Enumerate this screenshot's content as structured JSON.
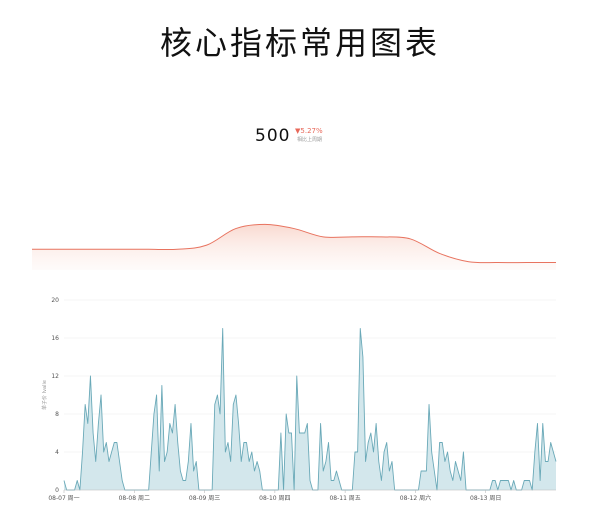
{
  "page": {
    "title": "核心指标常用图表"
  },
  "kpi": {
    "value": "500",
    "change": "5.27%",
    "caption": "相比上周期"
  },
  "colors": {
    "area_stroke": "#e8735f",
    "area_fill": "#fbe3dc",
    "spark_stroke": "#6aa9b8",
    "spark_fill": "#d3e7ec",
    "down": "#e8685a"
  },
  "chart_data": [
    {
      "type": "area",
      "title": "",
      "values": [
        5,
        5,
        5,
        5,
        5,
        5,
        6,
        10,
        11,
        10,
        8,
        8,
        8,
        7.5,
        4,
        2,
        1.8,
        1.8,
        1.8
      ],
      "grid": false
    },
    {
      "type": "area",
      "title": "",
      "ylabel": "单子价 Ivalie",
      "ylim": [
        0,
        20
      ],
      "yticks": [
        0,
        4,
        8,
        12,
        16,
        20
      ],
      "xticks": [
        "08-07 周一",
        "08-08 周二",
        "08-09 周三",
        "08-10 周四",
        "08-11 周五",
        "08-12 周六",
        "08-13 周日"
      ],
      "grid": true,
      "values": [
        1,
        0,
        0,
        0,
        0,
        1,
        0,
        4,
        9,
        7,
        12,
        6,
        3,
        7,
        10,
        4,
        5,
        3,
        4,
        5,
        5,
        3,
        1,
        0,
        0,
        0,
        0,
        0,
        0,
        0,
        0,
        0,
        0,
        4,
        8,
        10,
        2,
        11,
        3,
        4,
        7,
        6,
        9,
        5,
        2,
        1,
        1,
        3,
        7,
        2,
        3,
        0,
        0,
        0,
        0,
        0,
        0,
        9,
        10,
        8,
        17,
        4,
        5,
        3,
        9,
        10,
        7,
        3,
        5,
        5,
        3,
        4,
        2,
        3,
        2,
        0,
        0,
        0,
        0,
        0,
        0,
        0,
        6,
        0,
        8,
        6,
        6,
        0,
        12,
        6,
        6,
        6,
        7,
        1,
        0,
        0,
        0,
        7,
        2,
        3,
        5,
        1,
        1,
        2,
        1,
        0,
        0,
        0,
        0,
        0,
        4,
        4,
        17,
        14,
        3,
        5,
        6,
        4,
        7,
        3,
        1,
        4,
        5,
        2,
        3,
        0,
        0,
        0,
        0,
        0,
        0,
        0,
        0,
        0,
        0,
        2,
        2,
        2,
        9,
        4,
        2,
        0,
        5,
        5,
        3,
        4,
        2,
        1,
        3,
        2,
        1,
        4,
        0,
        0,
        0,
        0,
        0,
        0,
        0,
        0,
        0,
        0,
        1,
        1,
        0,
        1,
        1,
        1,
        1,
        0,
        1,
        0,
        0,
        0,
        1,
        1,
        1,
        0,
        4,
        7,
        1,
        7,
        3,
        3,
        5,
        4,
        3
      ]
    }
  ]
}
